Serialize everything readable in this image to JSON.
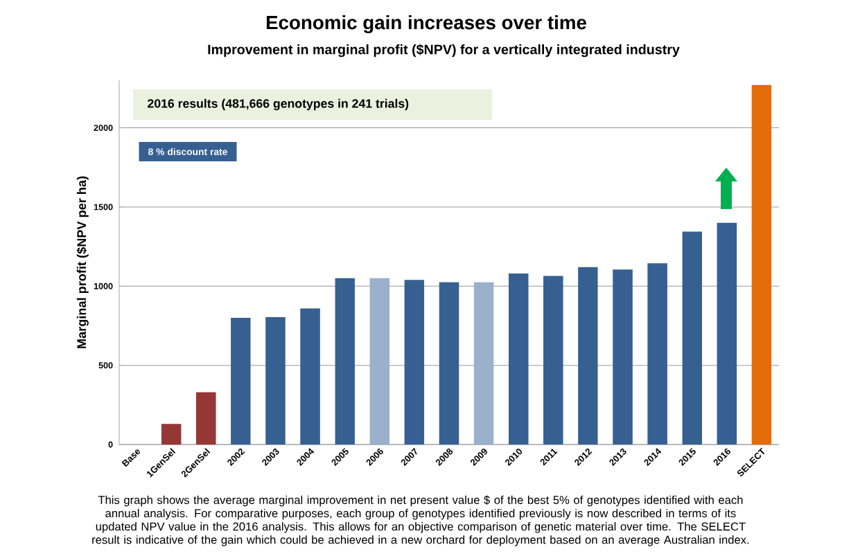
{
  "chart_data": {
    "type": "bar",
    "title": "Economic gain increases over time",
    "subtitle": "Improvement in marginal profit ($NPV) for a vertically integrated industry",
    "ylabel": "Marginal profit ($NPV per ha)",
    "categories": [
      "Base",
      "1GenSel",
      "2GenSel",
      "2002",
      "2003",
      "2004",
      "2005",
      "2006",
      "2007",
      "2008",
      "2009",
      "2010",
      "2011",
      "2012",
      "2013",
      "2014",
      "2015",
      "2016",
      "SELECT"
    ],
    "values": [
      0,
      130,
      330,
      800,
      805,
      860,
      1050,
      1050,
      1040,
      1025,
      1025,
      1080,
      1065,
      1120,
      1105,
      1145,
      1345,
      1400,
      2270
    ],
    "colors": [
      "#376092",
      "#953735",
      "#953735",
      "#376092",
      "#376092",
      "#376092",
      "#376092",
      "#9bb0cb",
      "#376092",
      "#376092",
      "#9bb0cb",
      "#376092",
      "#376092",
      "#376092",
      "#376092",
      "#376092",
      "#376092",
      "#376092",
      "#e46c0a"
    ],
    "ylim": [
      0,
      2300
    ],
    "yticks": [
      0,
      500,
      1000,
      1500,
      2000
    ],
    "grid": "y",
    "annotations": [
      "2016 results (481,666 genotypes in 241 trials)",
      "8 % discount rate",
      "This graph shows the average marginal improvement in net present value $ of the best 5% of genotypes identified with each annual analysis. For comparative purposes, each group of genotypes identified previously is now described in terms of its updated NPV value in the 2016 analysis. This allows for an objective comparison of genetic material over time. The SELECT result is indicative of the gain which could be achieved in a new orchard for deployment based on an average Australian index."
    ]
  }
}
